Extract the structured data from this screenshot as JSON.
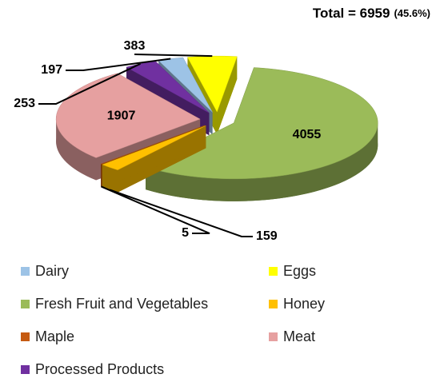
{
  "chart_data": {
    "type": "pie3d",
    "title": "Total = 6959",
    "subtitle": "(45.6%)",
    "categories": [
      "Dairy",
      "Eggs",
      "Fresh Fruit and Vegetables",
      "Honey",
      "Maple",
      "Meat",
      "Processed Products"
    ],
    "values": [
      197,
      383,
      4055,
      159,
      5,
      1907,
      253
    ],
    "colors": [
      "#9dc3e6",
      "#ffff00",
      "#9bbb59",
      "#ffc000",
      "#c55a11",
      "#e6a0a0",
      "#7030a0"
    ],
    "legend": "bottom"
  }
}
